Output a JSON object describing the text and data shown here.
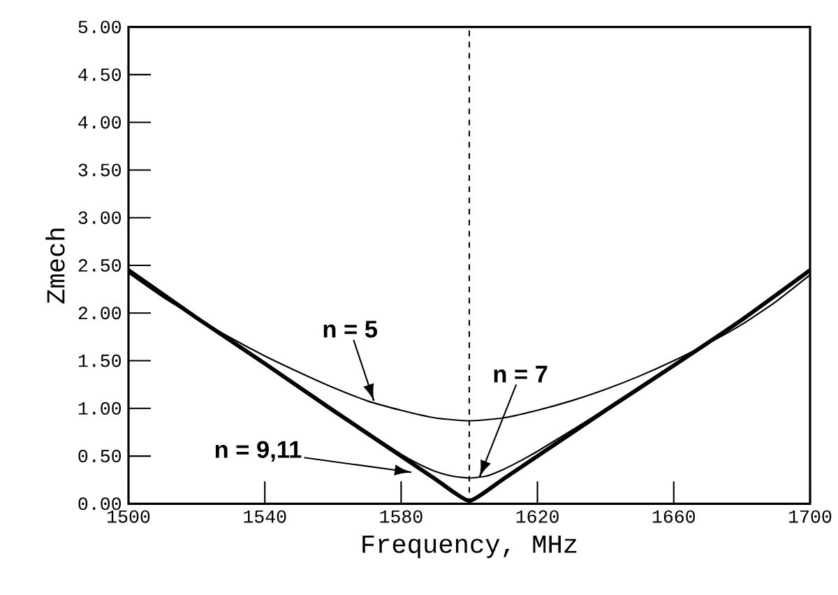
{
  "chart_data": {
    "type": "line",
    "xlabel": "Frequency, MHz",
    "ylabel": "Zmech",
    "xlim": [
      1500,
      1700
    ],
    "ylim": [
      0,
      5
    ],
    "xticks": [
      1500,
      1540,
      1580,
      1620,
      1660,
      1700
    ],
    "yticks": [
      {
        "value": 0,
        "label": "0.00"
      },
      {
        "value": 0.5,
        "label": "0.50"
      },
      {
        "value": 1,
        "label": "1.00"
      },
      {
        "value": 1.5,
        "label": "1.50"
      },
      {
        "value": 2,
        "label": "2.00"
      },
      {
        "value": 2.5,
        "label": "2.50"
      },
      {
        "value": 3,
        "label": "3.00"
      },
      {
        "value": 3.5,
        "label": "3.50"
      },
      {
        "value": 4,
        "label": "4.00"
      },
      {
        "value": 4.5,
        "label": "4.50"
      },
      {
        "value": 5,
        "label": "5.00"
      }
    ],
    "grid": false,
    "legend": false,
    "marker": "none",
    "series": [
      {
        "color": "#000000",
        "x": [
          1500,
          1510,
          1520,
          1530,
          1540,
          1550,
          1560,
          1570,
          1580,
          1590,
          1600,
          1610,
          1620,
          1630,
          1640,
          1650,
          1660,
          1670,
          1680,
          1690,
          1700
        ],
        "values": [
          2.42,
          2.17,
          1.95,
          1.74,
          1.55,
          1.38,
          1.22,
          1.08,
          0.98,
          0.9,
          0.87,
          0.9,
          0.98,
          1.08,
          1.2,
          1.34,
          1.5,
          1.68,
          1.88,
          2.12,
          2.4
        ]
      },
      {
        "color": "#000000",
        "x": [
          1500,
          1520,
          1540,
          1560,
          1580,
          1585,
          1590,
          1595,
          1600,
          1605,
          1610,
          1615,
          1620,
          1640,
          1660,
          1680,
          1700
        ],
        "values": [
          2.44,
          1.95,
          1.47,
          0.98,
          0.52,
          0.42,
          0.34,
          0.29,
          0.27,
          0.29,
          0.36,
          0.45,
          0.55,
          0.99,
          1.46,
          1.93,
          2.44
        ]
      },
      {
        "color": "#000000",
        "x": [
          1500,
          1520,
          1540,
          1560,
          1580,
          1590,
          1600,
          1610,
          1620,
          1640,
          1660,
          1680,
          1700
        ],
        "values": [
          2.45,
          1.95,
          1.47,
          0.98,
          0.5,
          0.26,
          0.03,
          0.26,
          0.5,
          0.98,
          1.45,
          1.93,
          2.45
        ]
      }
    ],
    "ref_lines": [
      {
        "axis": "x",
        "value": 1600,
        "line_style": "dashed"
      }
    ],
    "annotations": [
      {
        "text": "n = 5",
        "x": 1572,
        "y": 1.08
      },
      {
        "text": "n = 7",
        "x": 1603,
        "y": 0.28
      },
      {
        "text": "n = 9,11",
        "x": 1583,
        "y": 0.33
      }
    ]
  }
}
